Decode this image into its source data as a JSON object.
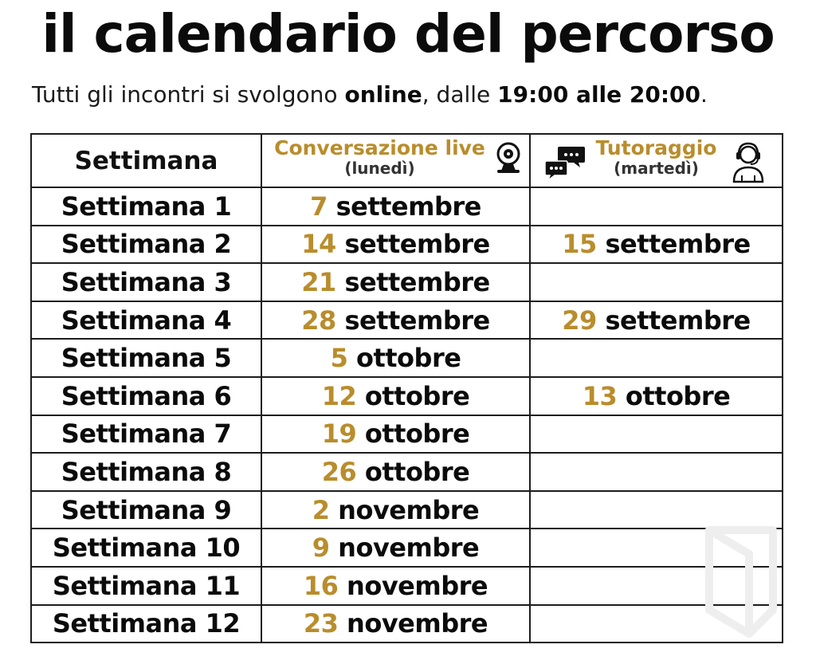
{
  "title": "il calendario del percorso",
  "subtitle": {
    "part1": "Tutti gli incontri si svolgono ",
    "bold1": "online",
    "part2": ", dalle ",
    "bold2": "19:00 alle 20:00",
    "part3": "."
  },
  "table": {
    "headers": {
      "week": "Settimana",
      "live": {
        "label": "Conversazione live",
        "sub": "(lunedì)",
        "icon": "webcam-icon"
      },
      "tutor": {
        "label": "Tutoraggio",
        "sub": "(martedì)",
        "icons": [
          "chat-bubbles-icon",
          "headset-person-icon"
        ]
      }
    },
    "rows": [
      {
        "week": "Settimana 1",
        "live_day": "7",
        "live_month": "settembre",
        "tutor_day": "",
        "tutor_month": ""
      },
      {
        "week": "Settimana 2",
        "live_day": "14",
        "live_month": "settembre",
        "tutor_day": "15",
        "tutor_month": "settembre"
      },
      {
        "week": "Settimana 3",
        "live_day": "21",
        "live_month": "settembre",
        "tutor_day": "",
        "tutor_month": ""
      },
      {
        "week": "Settimana 4",
        "live_day": "28",
        "live_month": "settembre",
        "tutor_day": "29",
        "tutor_month": "settembre"
      },
      {
        "week": "Settimana 5",
        "live_day": "5",
        "live_month": "ottobre",
        "tutor_day": "",
        "tutor_month": ""
      },
      {
        "week": "Settimana 6",
        "live_day": "12",
        "live_month": "ottobre",
        "tutor_day": "13",
        "tutor_month": "ottobre"
      },
      {
        "week": "Settimana 7",
        "live_day": "19",
        "live_month": "ottobre",
        "tutor_day": "",
        "tutor_month": ""
      },
      {
        "week": "Settimana 8",
        "live_day": "26",
        "live_month": "ottobre",
        "tutor_day": "",
        "tutor_month": ""
      },
      {
        "week": "Settimana 9",
        "live_day": "2",
        "live_month": "novembre",
        "tutor_day": "",
        "tutor_month": ""
      },
      {
        "week": "Settimana 10",
        "live_day": "9",
        "live_month": "novembre",
        "tutor_day": "",
        "tutor_month": ""
      },
      {
        "week": "Settimana 11",
        "live_day": "16",
        "live_month": "novembre",
        "tutor_day": "",
        "tutor_month": ""
      },
      {
        "week": "Settimana 12",
        "live_day": "23",
        "live_month": "novembre",
        "tutor_day": "",
        "tutor_month": ""
      }
    ]
  },
  "colors": {
    "accent": "#b98d2c",
    "text": "#0b0b0b",
    "border": "#1c1c1c"
  }
}
